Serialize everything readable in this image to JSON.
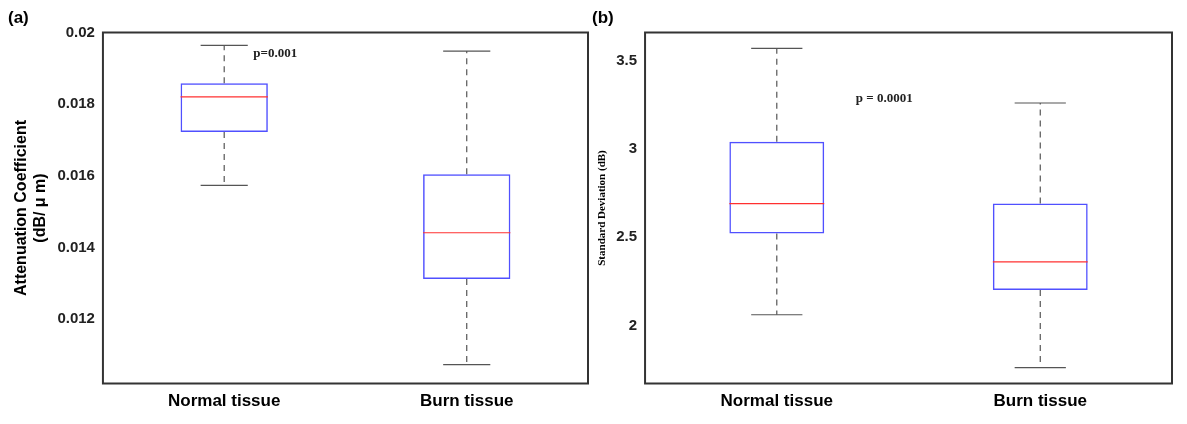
{
  "chart_data": [
    {
      "type": "box",
      "title": "(a)",
      "ylabel": "Attenuation Coefficient\n(dB/ μ m)",
      "categories": [
        "Normal tissue",
        "Burn tissue"
      ],
      "ylim": [
        0.0102,
        0.02
      ],
      "yticks": [
        0.012,
        0.014,
        0.016,
        0.018,
        0.02
      ],
      "grid": false,
      "legend": false,
      "annotations": [
        "p=0.001"
      ],
      "series": [
        {
          "color": "#5050ff",
          "boxes": [
            {
              "low": 0.01573,
              "q1": 0.01722,
              "median": 0.0182,
              "q3": 0.01858,
              "high": 0.01964
            },
            {
              "low": 0.01073,
              "q1": 0.01312,
              "median": 0.01441,
              "q3": 0.01604,
              "high": 0.01948
            }
          ]
        }
      ]
    },
    {
      "type": "box",
      "title": "(b)",
      "ylabel": "Standard Deviation (dB)",
      "categories": [
        "Normal tissue",
        "Burn tissue"
      ],
      "ylim": [
        1.67,
        3.66
      ],
      "yticks": [
        2,
        2.5,
        3,
        3.5
      ],
      "grid": false,
      "legend": false,
      "annotations": [
        "p = 0.0001"
      ],
      "series": [
        {
          "color": "#5050ff",
          "boxes": [
            {
              "low": 2.06,
              "q1": 2.52,
              "median": 2.69,
              "q3": 3.04,
              "high": 3.57
            },
            {
              "low": 1.76,
              "q1": 2.2,
              "median": 2.36,
              "q3": 2.69,
              "high": 3.26
            }
          ]
        }
      ]
    }
  ]
}
